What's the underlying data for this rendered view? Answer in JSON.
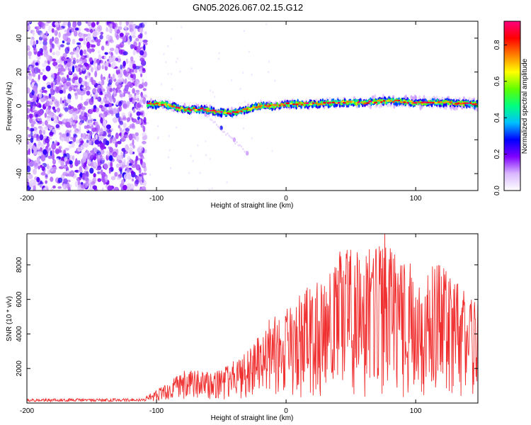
{
  "chart_data": [
    {
      "type": "heatmap",
      "title": "GN05.2026.067.02.15.G12",
      "xlabel": "Height of straight line (km)",
      "ylabel": "Frequency (Hz)",
      "xlim": [
        -200,
        148
      ],
      "ylim": [
        -50,
        50
      ],
      "xticks": [
        -200,
        -100,
        0,
        100
      ],
      "yticks": [
        -40,
        -20,
        0,
        20,
        40
      ],
      "noise_region_x": [
        -200,
        -108
      ],
      "signal_start_x": -107,
      "signal_center_trace": [
        {
          "x": -107,
          "y": 1
        },
        {
          "x": -95,
          "y": 1
        },
        {
          "x": -80,
          "y": -2
        },
        {
          "x": -65,
          "y": -2
        },
        {
          "x": -50,
          "y": -4
        },
        {
          "x": -40,
          "y": -4
        },
        {
          "x": -30,
          "y": -2
        },
        {
          "x": -20,
          "y": 0
        },
        {
          "x": -10,
          "y": 0
        },
        {
          "x": 0,
          "y": 1
        },
        {
          "x": 20,
          "y": 1
        },
        {
          "x": 40,
          "y": 2
        },
        {
          "x": 60,
          "y": 2
        },
        {
          "x": 80,
          "y": 3
        },
        {
          "x": 100,
          "y": 2
        },
        {
          "x": 120,
          "y": 2
        },
        {
          "x": 148,
          "y": 1
        }
      ],
      "secondary_branch": [
        {
          "x": -62,
          "y": -5
        },
        {
          "x": -50,
          "y": -13
        },
        {
          "x": -40,
          "y": -20
        },
        {
          "x": -30,
          "y": -28
        }
      ],
      "colorbar": {
        "label": "Normalized spectral amplitude",
        "range": [
          0.0,
          0.93
        ],
        "ticks": [
          "0.0",
          "0.2",
          "0.4",
          "0.6",
          "0.8"
        ],
        "tick_values": [
          0.0,
          0.2,
          0.4,
          0.6,
          0.8
        ],
        "colors": [
          "#ffffff",
          "#d9b8ff",
          "#8000ff",
          "#0000ff",
          "#00c0ff",
          "#00ff80",
          "#60ff00",
          "#ffff00",
          "#ff8000",
          "#ff0000",
          "#ff0080"
        ]
      }
    },
    {
      "type": "line",
      "title": "",
      "xlabel": "Height of straight line (km)",
      "ylabel": "SNR (10 * v/v)",
      "xlim": [
        -200,
        148
      ],
      "ylim": [
        0,
        9800
      ],
      "xticks": [
        -200,
        -100,
        0,
        100
      ],
      "yticks": [
        2000,
        4000,
        6000,
        8000
      ],
      "series": [
        {
          "name": "SNR",
          "color": "#f03030",
          "envelope": [
            {
              "x": -200,
              "low": 0,
              "high": 300
            },
            {
              "x": -110,
              "low": 0,
              "high": 300
            },
            {
              "x": -100,
              "low": 100,
              "high": 800
            },
            {
              "x": -90,
              "low": 200,
              "high": 1200
            },
            {
              "x": -80,
              "low": 200,
              "high": 1900
            },
            {
              "x": -70,
              "low": 200,
              "high": 1900
            },
            {
              "x": -60,
              "low": 200,
              "high": 1800
            },
            {
              "x": -50,
              "low": 200,
              "high": 1900
            },
            {
              "x": -40,
              "low": 200,
              "high": 2500
            },
            {
              "x": -30,
              "low": 300,
              "high": 3000
            },
            {
              "x": -20,
              "low": 400,
              "high": 4000
            },
            {
              "x": -10,
              "low": 500,
              "high": 5200
            },
            {
              "x": 0,
              "low": 300,
              "high": 5800
            },
            {
              "x": 10,
              "low": 300,
              "high": 6200
            },
            {
              "x": 20,
              "low": 300,
              "high": 7000
            },
            {
              "x": 30,
              "low": 300,
              "high": 7800
            },
            {
              "x": 40,
              "low": 300,
              "high": 8800
            },
            {
              "x": 50,
              "low": 300,
              "high": 8900
            },
            {
              "x": 60,
              "low": 300,
              "high": 8700
            },
            {
              "x": 70,
              "low": 300,
              "high": 9400
            },
            {
              "x": 80,
              "low": 300,
              "high": 9000
            },
            {
              "x": 90,
              "low": 300,
              "high": 8400
            },
            {
              "x": 100,
              "low": 300,
              "high": 8600
            },
            {
              "x": 110,
              "low": 300,
              "high": 8300
            },
            {
              "x": 120,
              "low": 300,
              "high": 8600
            },
            {
              "x": 130,
              "low": 300,
              "high": 7200
            },
            {
              "x": 140,
              "low": 300,
              "high": 6200
            },
            {
              "x": 148,
              "low": 300,
              "high": 5800
            }
          ],
          "peak": {
            "x": 76,
            "y": 9800
          }
        }
      ]
    }
  ]
}
